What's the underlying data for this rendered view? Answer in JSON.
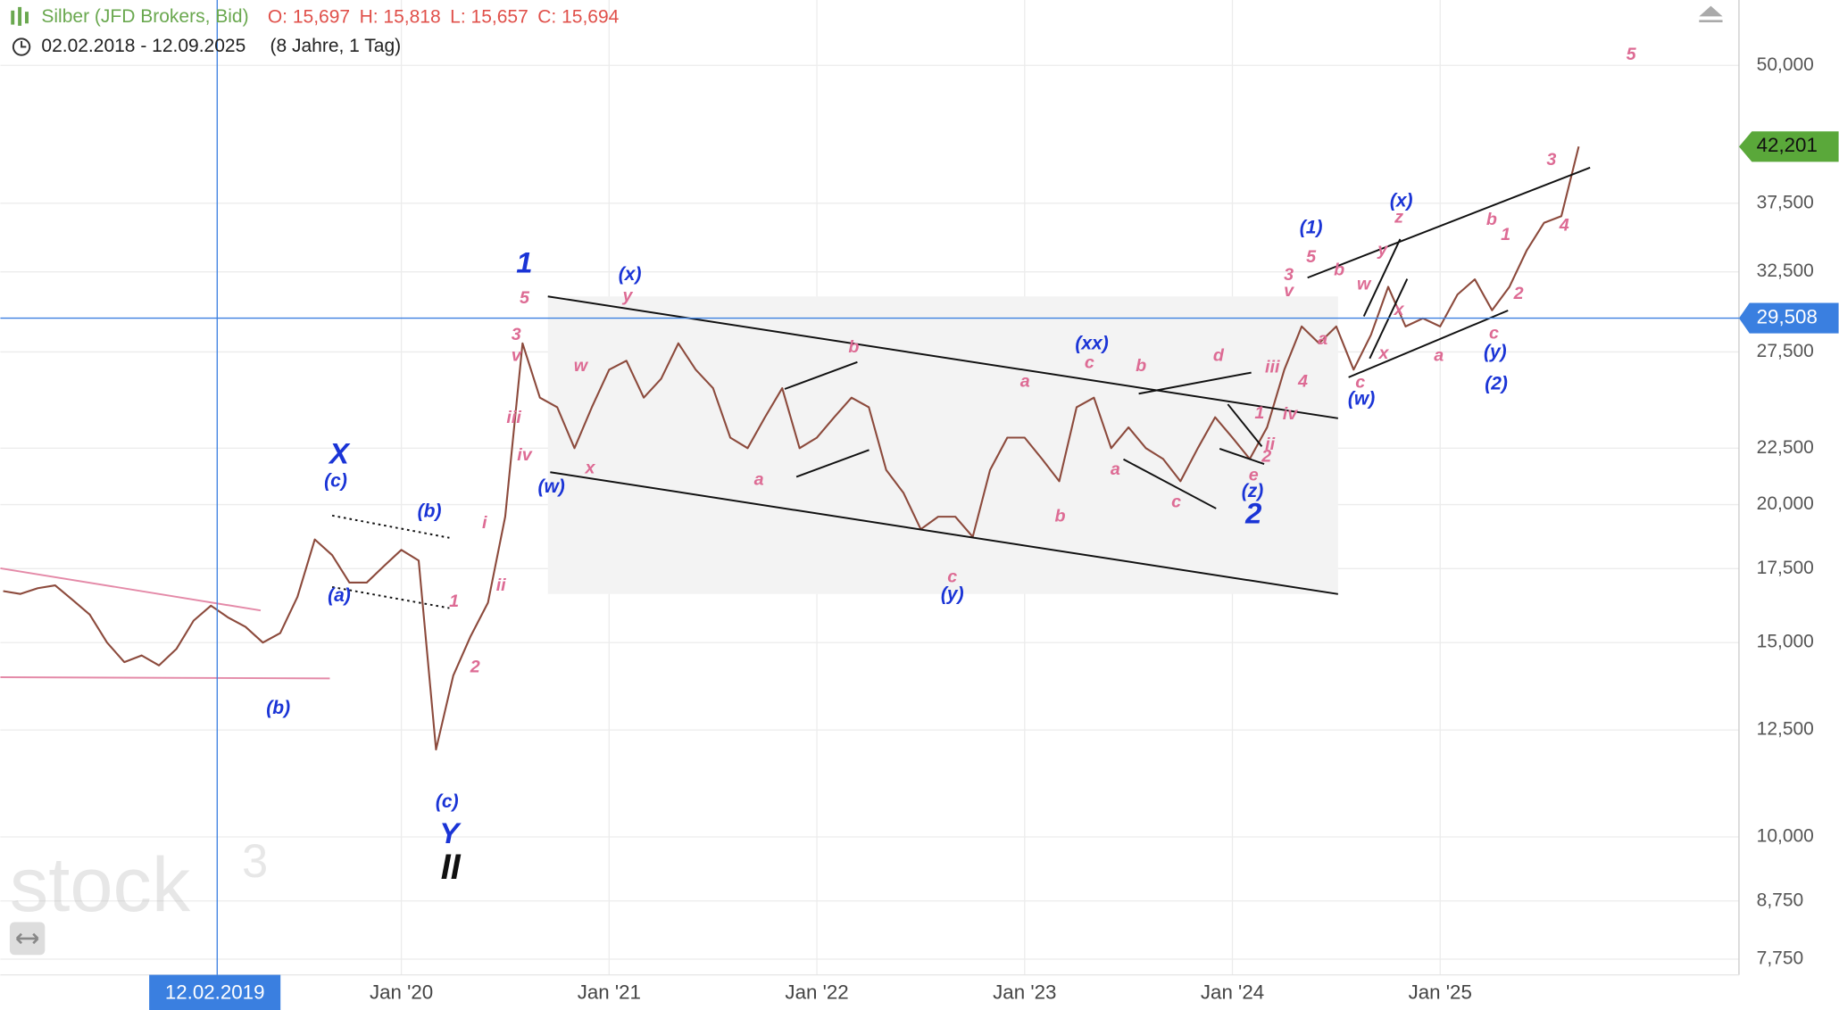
{
  "chart_data": {
    "type": "line",
    "title": "Silber (JFD Brokers, Bid)",
    "ohlc_text": [
      "O: 15,697",
      "H: 15,818",
      "L: 15,657",
      "C: 15,694"
    ],
    "date_range": "02.02.2018 - 12.09.2025",
    "duration": "(8 Jahre, 1 Tag)",
    "log_scale": true,
    "grid": true,
    "x": [
      "2018-02",
      "2018-03",
      "2018-04",
      "2018-05",
      "2018-06",
      "2018-07",
      "2018-08",
      "2018-09",
      "2018-10",
      "2018-11",
      "2018-12",
      "2019-01",
      "2019-02",
      "2019-03",
      "2019-04",
      "2019-05",
      "2019-06",
      "2019-07",
      "2019-08",
      "2019-09",
      "2019-10",
      "2019-11",
      "2019-12",
      "2020-01",
      "2020-02",
      "2020-03",
      "2020-04",
      "2020-05",
      "2020-06",
      "2020-07",
      "2020-08",
      "2020-09",
      "2020-10",
      "2020-11",
      "2020-12",
      "2021-01",
      "2021-02",
      "2021-03",
      "2021-04",
      "2021-05",
      "2021-06",
      "2021-07",
      "2021-08",
      "2021-09",
      "2021-10",
      "2021-11",
      "2021-12",
      "2022-01",
      "2022-02",
      "2022-03",
      "2022-04",
      "2022-05",
      "2022-06",
      "2022-07",
      "2022-08",
      "2022-09",
      "2022-10",
      "2022-11",
      "2022-12",
      "2023-01",
      "2023-02",
      "2023-03",
      "2023-04",
      "2023-05",
      "2023-06",
      "2023-07",
      "2023-08",
      "2023-09",
      "2023-10",
      "2023-11",
      "2023-12",
      "2024-01",
      "2024-02",
      "2024-03",
      "2024-04",
      "2024-05",
      "2024-06",
      "2024-07",
      "2024-08",
      "2024-09",
      "2024-10",
      "2024-11",
      "2024-12",
      "2025-01",
      "2025-02",
      "2025-03",
      "2025-04",
      "2025-05",
      "2025-06",
      "2025-07",
      "2025-08",
      "2025-09"
    ],
    "series": [
      {
        "name": "Silber",
        "color": "#8c4a3c",
        "values": [
          16700,
          16600,
          16800,
          16900,
          16400,
          15900,
          15000,
          14400,
          14600,
          14300,
          14800,
          15700,
          16200,
          15800,
          15500,
          15000,
          15300,
          16500,
          18600,
          18000,
          17000,
          17000,
          17600,
          18200,
          17800,
          12000,
          14000,
          15200,
          16300,
          19500,
          28000,
          25000,
          24500,
          22500,
          24500,
          26500,
          27000,
          25000,
          26000,
          28000,
          26500,
          25500,
          23000,
          22500,
          24000,
          25500,
          22500,
          23000,
          24000,
          25000,
          24500,
          21500,
          20500,
          19000,
          19500,
          19500,
          18700,
          21500,
          23000,
          23000,
          22000,
          21000,
          24500,
          25000,
          22500,
          23500,
          22500,
          22000,
          21000,
          22500,
          24000,
          23000,
          22000,
          23500,
          26500,
          29000,
          28000,
          29000,
          26500,
          28500,
          31500,
          29000,
          29500,
          29000,
          31000,
          32000,
          30000,
          31500,
          34000,
          36000,
          36500,
          42201
        ]
      }
    ],
    "xlim": [
      "2018-01",
      "2026-06"
    ],
    "xticks": [
      {
        "value": "2020-01",
        "label": "Jan '20"
      },
      {
        "value": "2021-01",
        "label": "Jan '21"
      },
      {
        "value": "2022-01",
        "label": "Jan '22"
      },
      {
        "value": "2023-01",
        "label": "Jan '23"
      },
      {
        "value": "2024-01",
        "label": "Jan '24"
      },
      {
        "value": "2025-01",
        "label": "Jan '25"
      }
    ],
    "ylim": [
      7500,
      57300
    ],
    "yticks": [
      {
        "value": 50000,
        "label": "50,000"
      },
      {
        "value": 37500,
        "label": "37,500"
      },
      {
        "value": 32500,
        "label": "32,500"
      },
      {
        "value": 27500,
        "label": "27,500"
      },
      {
        "value": 22500,
        "label": "22,500"
      },
      {
        "value": 20000,
        "label": "20,000"
      },
      {
        "value": 17500,
        "label": "17,500"
      },
      {
        "value": 15000,
        "label": "15,000"
      },
      {
        "value": 12500,
        "label": "12,500"
      },
      {
        "value": 10000,
        "label": "10,000"
      },
      {
        "value": 8750,
        "label": "8,750"
      },
      {
        "value": 7750,
        "label": "7,750"
      }
    ],
    "last_price": {
      "value": 42201,
      "label": "42,201",
      "color": "#5aa83a"
    },
    "crosshair": {
      "date": "12.02.2019",
      "price": {
        "value": 29508,
        "label": "29,508"
      },
      "color": "#3a7fe0"
    },
    "annotations": {
      "blue_large": [
        "X",
        "1",
        "Y",
        "2"
      ],
      "blue": [
        "(c)",
        "(b)",
        "(a)",
        "(b)",
        "(c)",
        "(w)",
        "(x)",
        "(xx)",
        "(y)",
        "(z)",
        "(1)",
        "(x)",
        "(w)",
        "(y)",
        "(2)"
      ],
      "black_large": [
        "II"
      ],
      "pink": [
        "5",
        "3",
        "v",
        "iii",
        "iv",
        "i",
        "ii",
        "1",
        "2",
        "w",
        "y",
        "x",
        "b",
        "a",
        "c",
        "a",
        "b",
        "c",
        "b",
        "a",
        "c",
        "d",
        "iii",
        "1",
        "iv",
        "ii",
        "e",
        "2",
        "3",
        "v",
        "5",
        "4",
        "b",
        "a",
        "c",
        "w",
        "y",
        "z",
        "x",
        "x",
        "a",
        "b",
        "1",
        "2",
        "c",
        "3",
        "4",
        "5"
      ]
    }
  },
  "logo": {
    "text": "stock",
    "sup": "3"
  }
}
